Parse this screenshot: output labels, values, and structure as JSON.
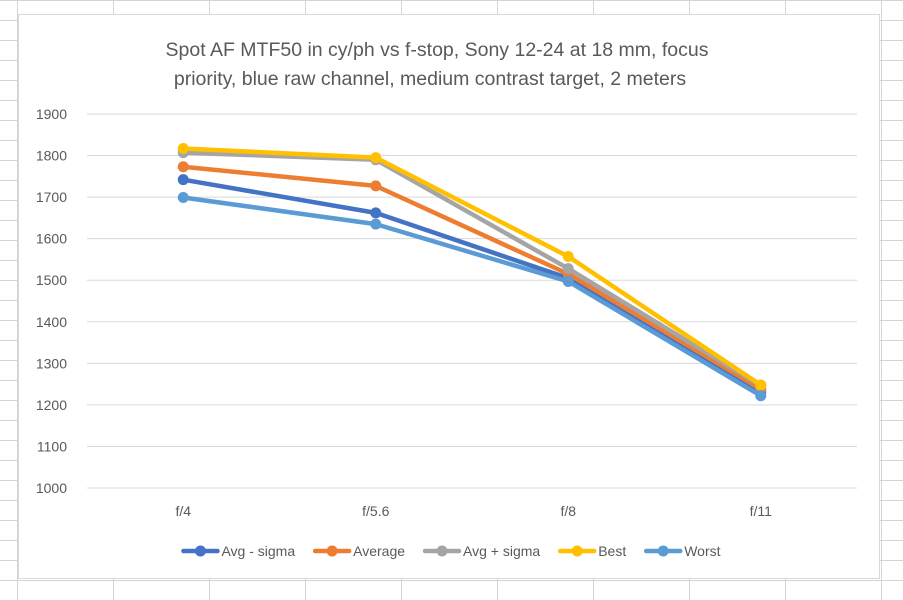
{
  "chart_data": {
    "type": "line",
    "title_lines": [
      "Spot AF MTF50 in cy/ph vs f-stop, Sony 12-24 at 18 mm, focus",
      "priority, blue raw channel, medium contrast target, 2 meters"
    ],
    "categories": [
      "f/4",
      "f/5.6",
      "f/8",
      "f/11"
    ],
    "ylim": [
      1000,
      1900
    ],
    "yticks": [
      1000,
      1100,
      1200,
      1300,
      1400,
      1500,
      1600,
      1700,
      1800,
      1900
    ],
    "grid": true,
    "legend_position": "bottom",
    "series": [
      {
        "name": "Avg - sigma",
        "color": "#4472C4",
        "values": [
          1742,
          1662,
          1505,
          1230
        ]
      },
      {
        "name": "Average",
        "color": "#ED7D31",
        "values": [
          1773,
          1727,
          1515,
          1238
        ]
      },
      {
        "name": "Avg + sigma",
        "color": "#A5A5A5",
        "values": [
          1807,
          1790,
          1528,
          1246
        ]
      },
      {
        "name": "Best",
        "color": "#FFC000",
        "values": [
          1817,
          1795,
          1557,
          1248
        ]
      },
      {
        "name": "Worst",
        "color": "#5B9BD5",
        "values": [
          1699,
          1635,
          1497,
          1222
        ]
      }
    ]
  }
}
